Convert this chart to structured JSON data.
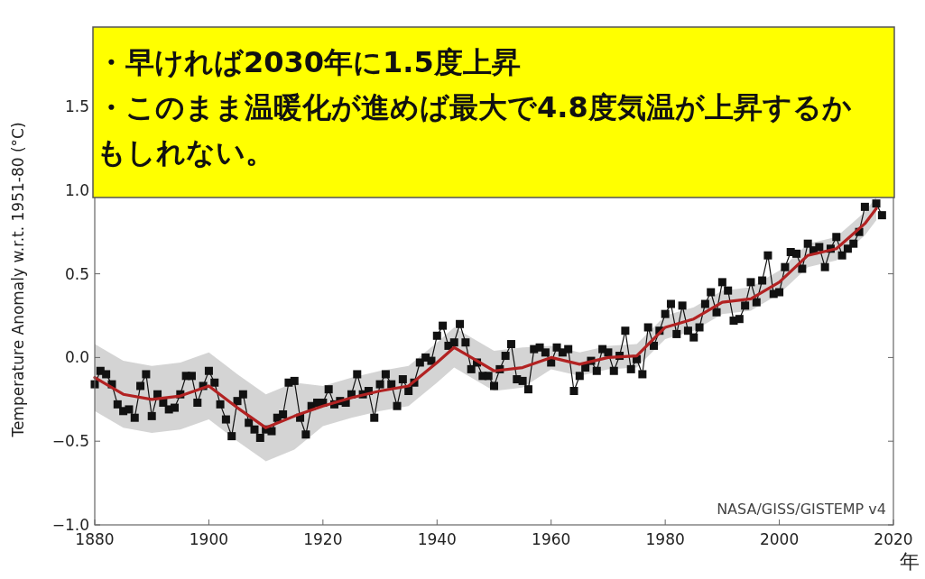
{
  "chart_data": {
    "type": "line",
    "title": "・早ければ2030年に1.5度上昇",
    "subtitle": "・このまま温暖化が進めば最大で4.8度気温が上昇するかもしれない。",
    "xlabel": "年",
    "ylabel": "Temperature Anomaly w.r.t. 1951-80 (°C)",
    "annotations": [
      "NASA/GISS/GISTEMP v4"
    ],
    "xlim": [
      1880,
      2020
    ],
    "xticks": [
      1880,
      1900,
      1920,
      1940,
      1960,
      1980,
      2000,
      2020
    ],
    "ylim": [
      -1.0,
      1.5
    ],
    "yticks": [
      {
        "value": -1.0,
        "label": "−1.0"
      },
      {
        "value": -0.5,
        "label": "−0.5"
      },
      {
        "value": 0.0,
        "label": "0.0"
      },
      {
        "value": 0.5,
        "label": "0.5"
      },
      {
        "value": 1.0,
        "label": "1.0"
      },
      {
        "value": 1.5,
        "label": "1.5"
      }
    ],
    "grid": false,
    "series": [
      {
        "color": "#111111",
        "marker": "square",
        "line_style": "solid",
        "x": [
          1880,
          1881,
          1882,
          1883,
          1884,
          1885,
          1886,
          1887,
          1888,
          1889,
          1890,
          1891,
          1892,
          1893,
          1894,
          1895,
          1896,
          1897,
          1898,
          1899,
          1900,
          1901,
          1902,
          1903,
          1904,
          1905,
          1906,
          1907,
          1908,
          1909,
          1910,
          1911,
          1912,
          1913,
          1914,
          1915,
          1916,
          1917,
          1918,
          1919,
          1920,
          1921,
          1922,
          1923,
          1924,
          1925,
          1926,
          1927,
          1928,
          1929,
          1930,
          1931,
          1932,
          1933,
          1934,
          1935,
          1936,
          1937,
          1938,
          1939,
          1940,
          1941,
          1942,
          1943,
          1944,
          1945,
          1946,
          1947,
          1948,
          1949,
          1950,
          1951,
          1952,
          1953,
          1954,
          1955,
          1956,
          1957,
          1958,
          1959,
          1960,
          1961,
          1962,
          1963,
          1964,
          1965,
          1966,
          1967,
          1968,
          1969,
          1970,
          1971,
          1972,
          1973,
          1974,
          1975,
          1976,
          1977,
          1978,
          1979,
          1980,
          1981,
          1982,
          1983,
          1984,
          1985,
          1986,
          1987,
          1988,
          1989,
          1990,
          1991,
          1992,
          1993,
          1994,
          1995,
          1996,
          1997,
          1998,
          1999,
          2000,
          2001,
          2002,
          2003,
          2004,
          2005,
          2006,
          2007,
          2008,
          2009,
          2010,
          2011,
          2012,
          2013,
          2014,
          2015,
          2016,
          2017,
          2018
        ],
        "values": [
          -0.16,
          -0.08,
          -0.1,
          -0.16,
          -0.28,
          -0.32,
          -0.31,
          -0.36,
          -0.17,
          -0.1,
          -0.35,
          -0.22,
          -0.27,
          -0.31,
          -0.3,
          -0.22,
          -0.11,
          -0.11,
          -0.27,
          -0.17,
          -0.08,
          -0.15,
          -0.28,
          -0.37,
          -0.47,
          -0.26,
          -0.22,
          -0.39,
          -0.43,
          -0.48,
          -0.43,
          -0.44,
          -0.36,
          -0.34,
          -0.15,
          -0.14,
          -0.36,
          -0.46,
          -0.29,
          -0.27,
          -0.27,
          -0.19,
          -0.28,
          -0.26,
          -0.27,
          -0.22,
          -0.1,
          -0.22,
          -0.2,
          -0.36,
          -0.16,
          -0.1,
          -0.16,
          -0.29,
          -0.13,
          -0.2,
          -0.15,
          -0.03,
          0.0,
          -0.02,
          0.13,
          0.19,
          0.07,
          0.09,
          0.2,
          0.09,
          -0.07,
          -0.03,
          -0.11,
          -0.11,
          -0.17,
          -0.07,
          0.01,
          0.08,
          -0.13,
          -0.14,
          -0.19,
          0.05,
          0.06,
          0.03,
          -0.03,
          0.06,
          0.03,
          0.05,
          -0.2,
          -0.11,
          -0.06,
          -0.02,
          -0.08,
          0.05,
          0.03,
          -0.08,
          0.01,
          0.16,
          -0.07,
          -0.01,
          -0.1,
          0.18,
          0.07,
          0.16,
          0.26,
          0.32,
          0.14,
          0.31,
          0.16,
          0.12,
          0.18,
          0.32,
          0.39,
          0.27,
          0.45,
          0.4,
          0.22,
          0.23,
          0.31,
          0.45,
          0.33,
          0.46,
          0.61,
          0.38,
          0.39,
          0.54,
          0.63,
          0.62,
          0.53,
          0.68,
          0.64,
          0.66,
          0.54,
          0.65,
          0.72,
          0.61,
          0.65,
          0.68,
          0.75,
          0.9,
          null,
          0.92,
          0.85
        ]
      },
      {
        "color": "#b22222",
        "marker": "none",
        "line_style": "solid",
        "x": [
          1880,
          1885,
          1890,
          1895,
          1900,
          1905,
          1910,
          1915,
          1920,
          1925,
          1930,
          1935,
          1940,
          1943,
          1945,
          1950,
          1955,
          1960,
          1965,
          1970,
          1975,
          1980,
          1985,
          1990,
          1995,
          2000,
          2005,
          2010,
          2015,
          2017
        ],
        "values": [
          -0.12,
          -0.22,
          -0.25,
          -0.23,
          -0.17,
          -0.3,
          -0.42,
          -0.35,
          -0.29,
          -0.24,
          -0.2,
          -0.17,
          -0.03,
          0.06,
          0.02,
          -0.08,
          -0.06,
          0.0,
          -0.04,
          0.0,
          0.01,
          0.18,
          0.23,
          0.33,
          0.35,
          0.45,
          0.61,
          0.65,
          0.8,
          0.89
        ],
        "lower": [
          -0.32,
          -0.42,
          -0.45,
          -0.43,
          -0.37,
          -0.5,
          -0.62,
          -0.55,
          -0.41,
          -0.36,
          -0.32,
          -0.29,
          -0.15,
          -0.06,
          -0.1,
          -0.2,
          -0.18,
          -0.07,
          -0.11,
          -0.07,
          -0.06,
          0.11,
          0.16,
          0.26,
          0.28,
          0.38,
          0.54,
          0.58,
          0.73,
          0.82
        ],
        "upper": [
          0.08,
          -0.02,
          -0.05,
          -0.03,
          0.03,
          -0.1,
          -0.22,
          -0.15,
          -0.17,
          -0.12,
          -0.08,
          -0.05,
          0.09,
          0.18,
          0.14,
          0.04,
          0.06,
          0.07,
          0.03,
          0.07,
          0.08,
          0.25,
          0.3,
          0.4,
          0.42,
          0.52,
          0.68,
          0.72,
          0.87,
          0.96
        ]
      }
    ]
  }
}
